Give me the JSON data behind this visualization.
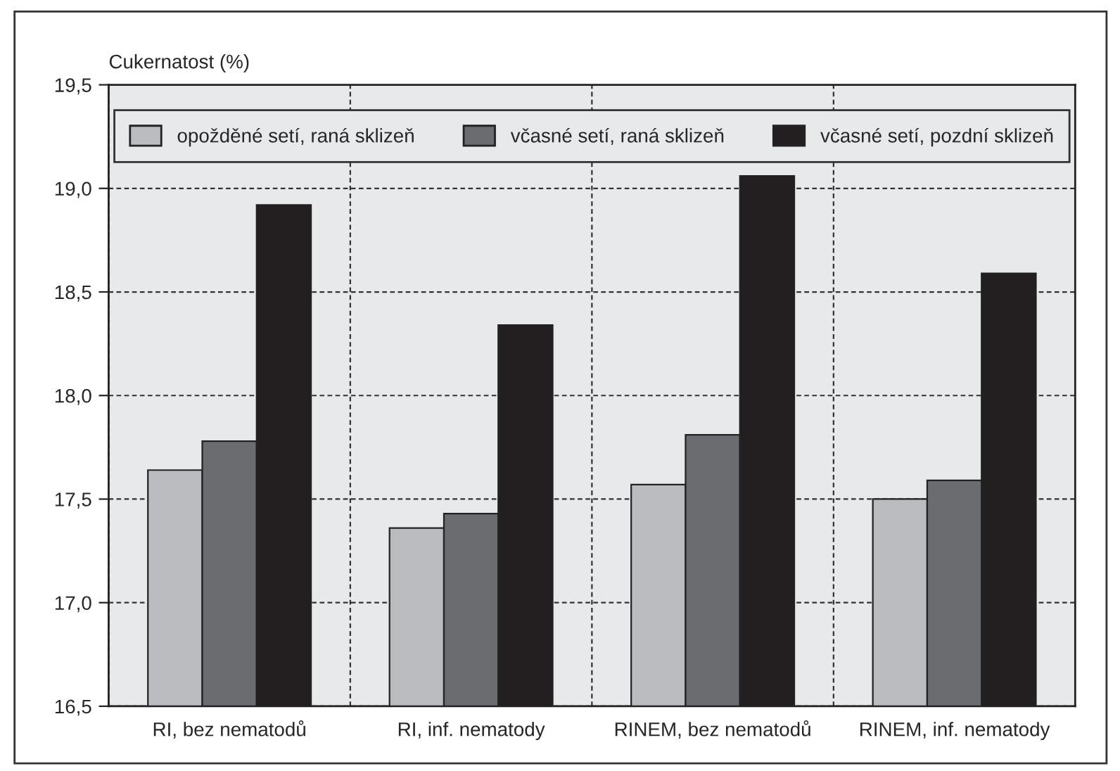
{
  "chart_data": {
    "type": "bar",
    "ylabel": "Cukernatost (%)",
    "categories": [
      "RI, bez nematodů",
      "RI, inf. nematody",
      "RINEM, bez nematodů",
      "RINEM, inf. nematody"
    ],
    "series": [
      {
        "name": "opožděné setí, raná sklizeň",
        "color": "#bbbcc0",
        "values": [
          17.64,
          17.36,
          17.57,
          17.5
        ]
      },
      {
        "name": "včasné setí, raná sklizeň",
        "color": "#6b6c70",
        "values": [
          17.78,
          17.43,
          17.81,
          17.59
        ]
      },
      {
        "name": "včasné setí, pozdní sklizeň",
        "color": "#231f20",
        "values": [
          18.92,
          18.34,
          19.06,
          18.59
        ]
      }
    ],
    "ylim": [
      16.5,
      19.5
    ],
    "yticks": [
      {
        "value": 16.5,
        "label": "16,5"
      },
      {
        "value": 17.0,
        "label": "17,0"
      },
      {
        "value": 17.5,
        "label": "17,5"
      },
      {
        "value": 18.0,
        "label": "18,0"
      },
      {
        "value": 18.5,
        "label": "18,5"
      },
      {
        "value": 19.0,
        "label": "19,0"
      },
      {
        "value": 19.5,
        "label": "19,5"
      }
    ],
    "grid": true,
    "legend": "top"
  }
}
